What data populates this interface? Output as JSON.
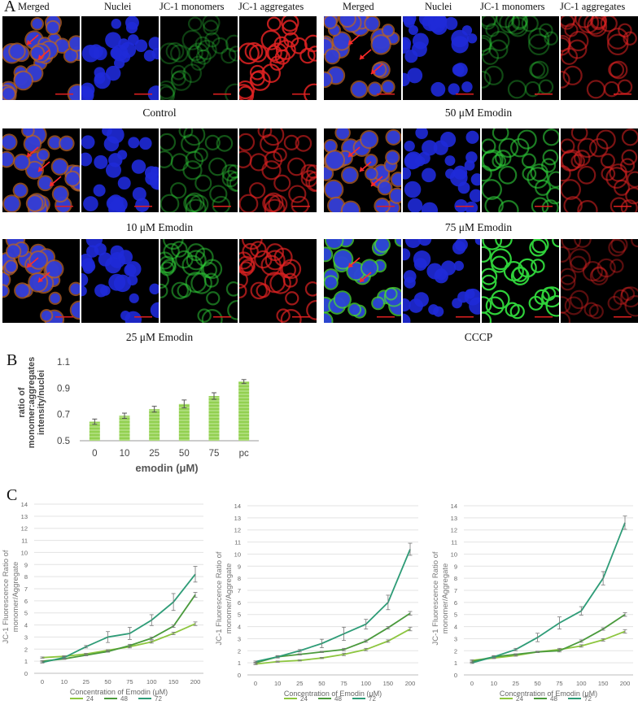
{
  "panel_a": {
    "letter": "A",
    "channel_headers": [
      "Merged",
      "Nuclei",
      "JC-1 monomers",
      "JC-1 aggregates"
    ],
    "conditions": [
      {
        "label": "Control",
        "green": 0.3,
        "red": 0.85,
        "arrows": 2
      },
      {
        "label": "50 μM Emodin",
        "green": 0.35,
        "red": 0.55,
        "arrows": 3
      },
      {
        "label": "10 μM Emodin",
        "green": 0.4,
        "red": 0.6,
        "arrows": 3
      },
      {
        "label": "75 μM Emodin",
        "green": 0.6,
        "red": 0.55,
        "arrows": 3
      },
      {
        "label": "25 μM Emodin",
        "green": 0.5,
        "red": 0.7,
        "arrows": 2
      },
      {
        "label": "CCCP",
        "green": 1.0,
        "red": 0.4,
        "arrows": 2
      }
    ]
  },
  "panel_b": {
    "letter": "B",
    "chart_data": {
      "type": "bar",
      "categories": [
        "0",
        "10",
        "25",
        "50",
        "75",
        "pc"
      ],
      "values": [
        0.645,
        0.69,
        0.74,
        0.78,
        0.84,
        0.95
      ],
      "errors": [
        0.02,
        0.02,
        0.022,
        0.03,
        0.025,
        0.015
      ],
      "yticks": [
        "0.5",
        "0.7",
        "0.9",
        "1.1"
      ],
      "ylim": [
        0.5,
        1.1
      ],
      "xlabel": "emodin (μM)",
      "ylabel_line1": "ratio of",
      "ylabel_line2": "monomer:aggregates",
      "ylabel_line3": "intensity/nuclei",
      "bar_color": "#92d050"
    }
  },
  "panel_c": {
    "letter": "C",
    "chart_data": [
      {
        "type": "line",
        "categories": [
          "0",
          "10",
          "25",
          "50",
          "75",
          "100",
          "150",
          "200"
        ],
        "series": [
          {
            "name": "24",
            "values": [
              1.3,
              1.4,
              1.6,
              1.9,
              2.2,
              2.6,
              3.3,
              4.1
            ],
            "errors": [
              0.05,
              0.05,
              0.05,
              0.05,
              0.1,
              0.1,
              0.1,
              0.15
            ],
            "color": "#8dc63f"
          },
          {
            "name": "48",
            "values": [
              1.0,
              1.2,
              1.5,
              1.8,
              2.3,
              2.9,
              3.9,
              6.5
            ],
            "errors": [
              0.05,
              0.05,
              0.05,
              0.05,
              0.1,
              0.1,
              0.1,
              0.2
            ],
            "color": "#4a9a3c"
          },
          {
            "name": "72",
            "values": [
              0.9,
              1.3,
              2.2,
              3.0,
              3.3,
              4.4,
              5.9,
              8.2
            ],
            "errors": [
              0.05,
              0.1,
              0.1,
              0.45,
              0.5,
              0.45,
              0.7,
              0.65
            ],
            "color": "#2e9c77"
          }
        ],
        "yticks": [
          "0",
          "1",
          "2",
          "3",
          "4",
          "5",
          "6",
          "7",
          "8",
          "9",
          "10",
          "11",
          "12",
          "13",
          "14"
        ],
        "ylim": [
          0,
          14
        ],
        "xlabel": "Concentration of Emodin (μM)",
        "ylabel_line1": "JC-1 Fluorescence Ratio of",
        "ylabel_line2": "monomer/Aggregate",
        "legend": "bottom"
      },
      {
        "type": "line",
        "categories": [
          "0",
          "10",
          "25",
          "50",
          "75",
          "100",
          "150",
          "200"
        ],
        "series": [
          {
            "name": "24",
            "values": [
              0.9,
              1.1,
              1.2,
              1.4,
              1.7,
              2.1,
              2.8,
              3.8
            ],
            "errors": [
              0.05,
              0.05,
              0.05,
              0.05,
              0.1,
              0.1,
              0.1,
              0.15
            ],
            "color": "#8dc63f"
          },
          {
            "name": "48",
            "values": [
              1.0,
              1.5,
              1.7,
              1.9,
              2.1,
              2.8,
              3.9,
              5.1
            ],
            "errors": [
              0.05,
              0.05,
              0.05,
              0.05,
              0.1,
              0.1,
              0.1,
              0.15
            ],
            "color": "#4a9a3c"
          },
          {
            "name": "72",
            "values": [
              1.1,
              1.5,
              2.0,
              2.6,
              3.4,
              4.2,
              6.0,
              10.4
            ],
            "errors": [
              0.05,
              0.1,
              0.1,
              0.35,
              0.55,
              0.4,
              0.6,
              0.5
            ],
            "color": "#2e9c77"
          }
        ],
        "yticks": [
          "0",
          "1",
          "2",
          "3",
          "4",
          "5",
          "6",
          "7",
          "8",
          "9",
          "10",
          "11",
          "12",
          "13",
          "14"
        ],
        "ylim": [
          0,
          14
        ],
        "xlabel": "Concentration of Emodin (μM)",
        "ylabel_line1": "JC-1 Fluorescence Ratio of",
        "ylabel_line2": "monomer/Aggregate",
        "legend": "bottom"
      },
      {
        "type": "line",
        "categories": [
          "0",
          "10",
          "25",
          "50",
          "75",
          "100",
          "150",
          "200"
        ],
        "series": [
          {
            "name": "24",
            "values": [
              1.2,
              1.4,
              1.6,
              1.9,
              2.1,
              2.4,
              2.9,
              3.6
            ],
            "errors": [
              0.05,
              0.05,
              0.05,
              0.05,
              0.1,
              0.1,
              0.1,
              0.15
            ],
            "color": "#8dc63f"
          },
          {
            "name": "48",
            "values": [
              1.1,
              1.5,
              1.7,
              1.9,
              2.0,
              2.8,
              3.8,
              5.0
            ],
            "errors": [
              0.05,
              0.05,
              0.05,
              0.05,
              0.1,
              0.1,
              0.1,
              0.15
            ],
            "color": "#4a9a3c"
          },
          {
            "name": "72",
            "values": [
              1.0,
              1.5,
              2.1,
              3.1,
              4.3,
              5.3,
              8.0,
              12.6
            ],
            "errors": [
              0.05,
              0.1,
              0.1,
              0.35,
              0.5,
              0.35,
              0.55,
              0.55
            ],
            "color": "#2e9c77"
          }
        ],
        "yticks": [
          "0",
          "1",
          "2",
          "3",
          "4",
          "5",
          "6",
          "7",
          "8",
          "9",
          "10",
          "11",
          "12",
          "13",
          "14"
        ],
        "ylim": [
          0,
          14
        ],
        "xlabel": "Concentration of Emodin (μM)",
        "ylabel_line1": "JC-1 Fluorescence Ratio of",
        "ylabel_line2": "monomer/Aggregate",
        "legend": "bottom"
      }
    ]
  }
}
